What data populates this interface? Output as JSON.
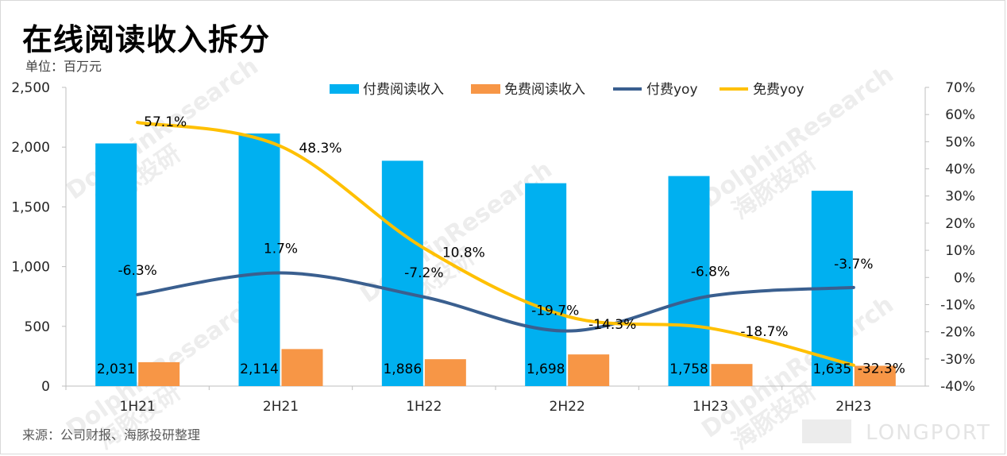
{
  "page": {
    "title": "在线阅读收入拆分",
    "unit": "单位：百万元",
    "source": "来源：公司财报、海豚投研整理",
    "brand": "LONGPORT",
    "watermark": [
      "DolphinResearch",
      "海豚投研"
    ]
  },
  "colors": {
    "paid_bar": "#00b0f0",
    "free_bar": "#f79646",
    "paid_yoy": "#3a5f8f",
    "free_yoy": "#ffc000"
  },
  "chart_data": {
    "type": "bar",
    "categories": [
      "1H21",
      "2H21",
      "1H22",
      "2H22",
      "1H23",
      "2H23"
    ],
    "y_left": {
      "range": [
        0,
        2500
      ],
      "ticks": [
        "0",
        "500",
        "1,000",
        "1,500",
        "2,000",
        "2,500"
      ]
    },
    "y_right": {
      "range": [
        -40,
        70
      ],
      "ticks": [
        "-40%",
        "-30%",
        "-20%",
        "-10%",
        "0%",
        "10%",
        "20%",
        "30%",
        "40%",
        "50%",
        "60%",
        "70%"
      ]
    },
    "grid": false,
    "legend_position": "top",
    "series": [
      {
        "name": "付费阅读收入",
        "kind": "bar",
        "axis": "left",
        "color": "#00b0f0",
        "values": [
          2031,
          2114,
          1886,
          1698,
          1758,
          1635
        ],
        "labels": [
          "2,031",
          "2,114",
          "1,886",
          "1,698",
          "1,758",
          "1,635"
        ]
      },
      {
        "name": "免费阅读收入",
        "kind": "bar",
        "axis": "left",
        "color": "#f79646",
        "values": [
          200,
          310,
          225,
          265,
          185,
          170
        ]
      },
      {
        "name": "付费yoy",
        "kind": "line",
        "axis": "right",
        "color": "#3a5f8f",
        "values": [
          -6.3,
          1.7,
          -7.2,
          -19.7,
          -6.8,
          -3.7
        ],
        "labels": [
          "-6.3%",
          "1.7%",
          "-7.2%",
          "-19.7%",
          "-6.8%",
          "-3.7%"
        ]
      },
      {
        "name": "免费yoy",
        "kind": "line",
        "axis": "right",
        "color": "#ffc000",
        "values": [
          57.1,
          48.3,
          10.8,
          -14.3,
          -18.7,
          -32.3
        ],
        "labels": [
          "57.1%",
          "48.3%",
          "10.8%",
          "-14.3%",
          "-18.7%",
          "-32.3%"
        ]
      }
    ]
  }
}
